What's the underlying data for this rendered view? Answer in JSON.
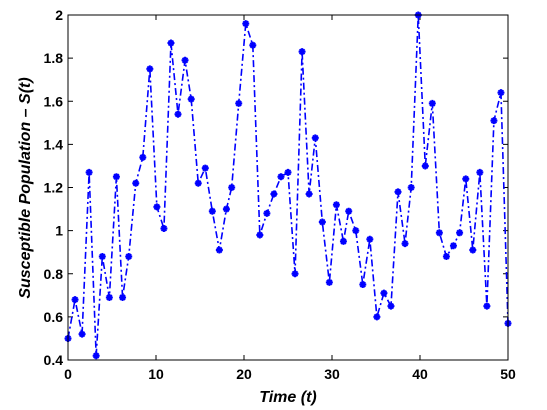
{
  "chart_data": {
    "type": "line",
    "xlabel": "Time (t)",
    "ylabel": "Susceptible Population – S(t)",
    "xlim": [
      0,
      50
    ],
    "xticks": [
      0,
      10,
      20,
      30,
      40,
      50
    ],
    "ylim": [
      0.4,
      2
    ],
    "yticks": [
      0.4,
      0.6,
      0.8,
      1,
      1.2,
      1.4,
      1.6,
      1.8,
      2
    ],
    "series": [
      {
        "color": "#0000ff",
        "x": [
          0,
          0.8,
          1.6,
          2.4,
          3.2,
          3.9,
          4.7,
          5.5,
          6.2,
          6.9,
          7.7,
          8.5,
          9.3,
          10.1,
          10.9,
          11.7,
          12.5,
          13.3,
          14.0,
          14.8,
          15.6,
          16.4,
          17.2,
          18.0,
          18.6,
          19.4,
          20.2,
          21.0,
          21.8,
          22.6,
          23.4,
          24.2,
          25.0,
          25.8,
          26.6,
          27.4,
          28.1,
          28.9,
          29.7,
          30.5,
          31.3,
          31.9,
          32.7,
          33.5,
          34.3,
          35.1,
          35.9,
          36.7,
          37.5,
          38.3,
          39.0,
          39.8,
          40.6,
          41.4,
          42.2,
          43.0,
          43.8,
          44.5,
          45.2,
          46.0,
          46.8,
          47.6,
          48.4,
          49.2,
          50.0
        ],
        "values": [
          0.5,
          0.68,
          0.52,
          1.27,
          0.42,
          0.88,
          0.69,
          1.25,
          0.69,
          0.88,
          1.22,
          1.34,
          1.75,
          1.11,
          1.01,
          1.87,
          1.54,
          1.79,
          1.61,
          1.22,
          1.29,
          1.09,
          0.91,
          1.1,
          1.2,
          1.59,
          1.96,
          1.86,
          0.98,
          1.08,
          1.17,
          1.25,
          1.27,
          0.8,
          1.83,
          1.17,
          1.43,
          1.04,
          0.76,
          1.12,
          0.95,
          1.09,
          1.0,
          0.75,
          0.96,
          0.6,
          0.71,
          0.65,
          1.18,
          0.94,
          1.2,
          2.0,
          1.3,
          1.59,
          0.99,
          0.88,
          0.93,
          0.99,
          1.24,
          0.91,
          1.27,
          0.65,
          1.51,
          1.64,
          0.57
        ]
      }
    ]
  }
}
